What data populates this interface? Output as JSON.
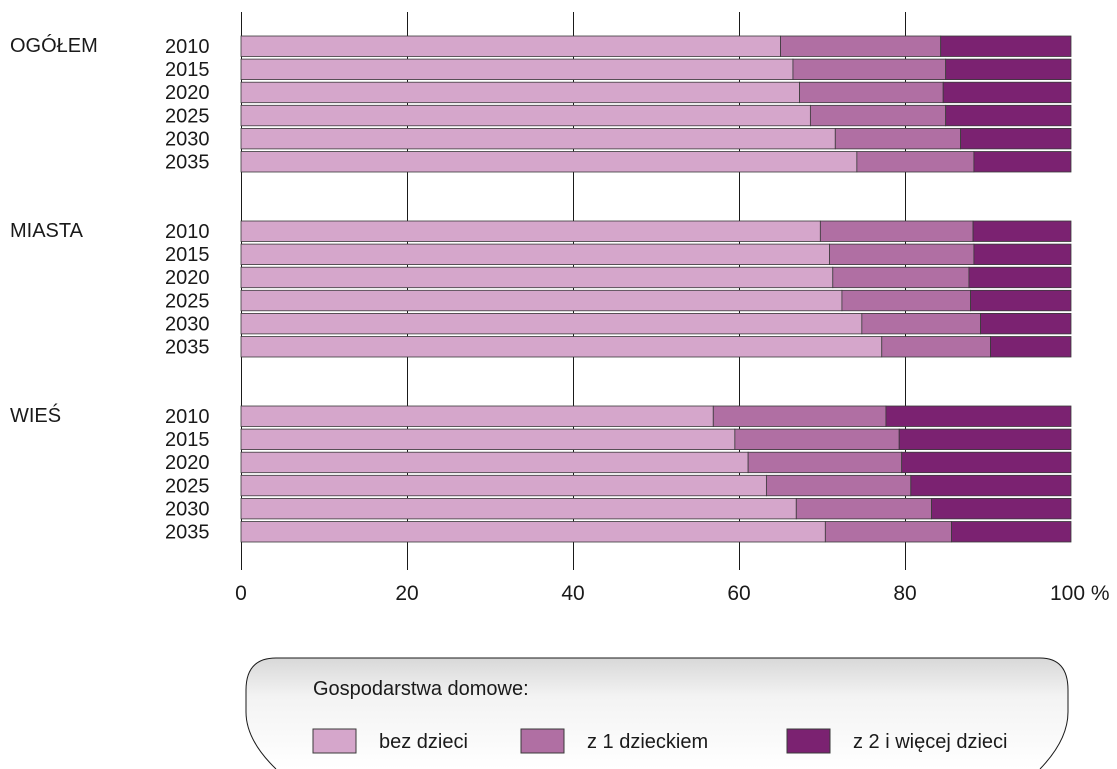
{
  "chart_data": {
    "type": "bar",
    "orientation": "horizontal",
    "stacked": true,
    "unit": "%",
    "xlim": [
      0,
      100
    ],
    "x_ticks": [
      "0",
      "20",
      "40",
      "60",
      "80",
      "100 %"
    ],
    "grid": true,
    "colors": {
      "bez_dzieci": "#d5a6cb",
      "z_1_dzieckiem": "#b06fa3",
      "z_2_i_wiecej": "#7b2271"
    },
    "groups": [
      {
        "label": "OGÓŁEM",
        "years": [
          "2010",
          "2015",
          "2020",
          "2025",
          "2030",
          "2035"
        ],
        "series": [
          {
            "name": "bez dzieci",
            "values": [
              65.0,
              66.5,
              67.3,
              68.6,
              71.6,
              74.2
            ]
          },
          {
            "name": "z 1 dzieckiem",
            "values": [
              19.3,
              18.4,
              17.3,
              16.3,
              15.1,
              14.1
            ]
          },
          {
            "name": "z 2 i więcej dzieci",
            "values": [
              15.7,
              15.1,
              15.4,
              15.1,
              13.3,
              11.7
            ]
          }
        ]
      },
      {
        "label": "MIASTA",
        "years": [
          "2010",
          "2015",
          "2020",
          "2025",
          "2030",
          "2035"
        ],
        "series": [
          {
            "name": "bez dzieci",
            "values": [
              69.8,
              70.9,
              71.3,
              72.4,
              74.8,
              77.2
            ]
          },
          {
            "name": "z 1 dzieckiem",
            "values": [
              18.4,
              17.4,
              16.4,
              15.5,
              14.3,
              13.1
            ]
          },
          {
            "name": "z 2 i więcej dzieci",
            "values": [
              11.8,
              11.7,
              12.3,
              12.1,
              10.9,
              9.7
            ]
          }
        ]
      },
      {
        "label": "WIEŚ",
        "years": [
          "2010",
          "2015",
          "2020",
          "2025",
          "2030",
          "2035"
        ],
        "series": [
          {
            "name": "bez dzieci",
            "values": [
              56.9,
              59.5,
              61.1,
              63.3,
              66.9,
              70.4
            ]
          },
          {
            "name": "z 1 dzieckiem",
            "values": [
              20.8,
              19.8,
              18.5,
              17.4,
              16.3,
              15.2
            ]
          },
          {
            "name": "z 2 i więcej dzieci",
            "values": [
              22.3,
              20.7,
              20.4,
              19.3,
              16.8,
              14.4
            ]
          }
        ]
      }
    ],
    "legend": {
      "title": "Gospodarstwa domowe:",
      "position": "bottom",
      "items": [
        "bez dzieci",
        "z 1 dzieckiem",
        "z 2 i więcej dzieci"
      ]
    }
  }
}
